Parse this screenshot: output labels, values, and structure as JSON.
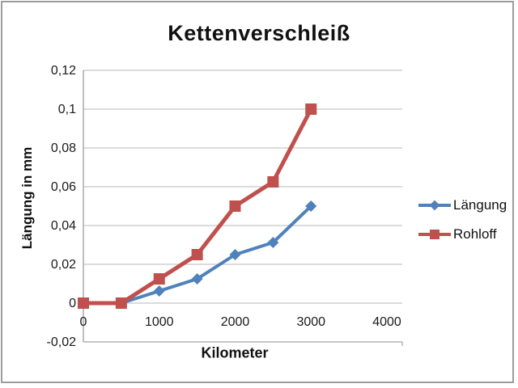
{
  "window": {
    "background": "#ffffff",
    "frame_border_color": "#9d9d9d"
  },
  "chart_data": {
    "type": "line",
    "title": "Kettenverschleiß",
    "xlabel": "Kilometer",
    "ylabel": "Längung in mm",
    "x": [
      0,
      500,
      1000,
      1500,
      2000,
      2500,
      3000
    ],
    "series": [
      {
        "name": "Längung",
        "color": "#4F81BD",
        "marker": "diamond",
        "values": [
          0,
          0,
          0.00625,
          0.0125,
          0.025,
          0.03125,
          0.05
        ]
      },
      {
        "name": "Rohloff",
        "color": "#C0504D",
        "marker": "square",
        "values": [
          0,
          0,
          0.0125,
          0.025,
          0.05,
          0.0625,
          0.1
        ]
      }
    ],
    "xlim": [
      0,
      4000
    ],
    "ylim": [
      -0.02,
      0.12
    ],
    "x_ticks": [
      {
        "value": 0,
        "label": "0"
      },
      {
        "value": 1000,
        "label": "1000"
      },
      {
        "value": 2000,
        "label": "2000"
      },
      {
        "value": 3000,
        "label": "3000"
      },
      {
        "value": 4000,
        "label": "4000"
      }
    ],
    "y_ticks": [
      {
        "value": -0.02,
        "label": "-0,02"
      },
      {
        "value": 0,
        "label": "0"
      },
      {
        "value": 0.02,
        "label": "0,02"
      },
      {
        "value": 0.04,
        "label": "0,04"
      },
      {
        "value": 0.06,
        "label": "0,06"
      },
      {
        "value": 0.08,
        "label": "0,08"
      },
      {
        "value": 0.1,
        "label": "0,1"
      },
      {
        "value": 0.12,
        "label": "0,12"
      }
    ],
    "grid": true,
    "legend_position": "right",
    "gridline_color": "#c6c6c6",
    "axis_color": "#a3a3a3",
    "text_color": "#1a1a1a"
  }
}
